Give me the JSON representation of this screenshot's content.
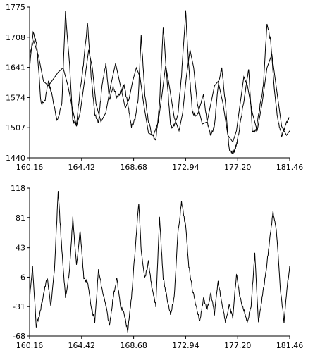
{
  "chart_data": [
    {
      "type": "line",
      "title": "",
      "xlabel": "",
      "ylabel": "",
      "xlim": [
        160.16,
        181.46
      ],
      "ylim": [
        1440,
        1775
      ],
      "x_ticks": [
        160.16,
        164.42,
        168.68,
        172.94,
        177.2,
        181.46
      ],
      "x_tick_labels": [
        "160.16",
        "164.42",
        "168.68",
        "172.94",
        "177.20",
        "181.46"
      ],
      "y_ticks": [
        1440,
        1507,
        1574,
        1641,
        1708,
        1775
      ],
      "y_tick_labels": [
        "1440",
        "1507",
        "1574",
        "1641",
        "1708",
        "1775"
      ],
      "grid": false,
      "series": [
        {
          "name": "",
          "style": "noisy",
          "x": [
            160.16,
            160.45,
            160.75,
            161.1,
            161.4,
            161.7,
            162.0,
            162.4,
            162.8,
            163.1,
            163.4,
            163.7,
            164.0,
            164.3,
            164.6,
            164.9,
            165.2,
            165.5,
            165.8,
            166.1,
            166.4,
            166.7,
            167.0,
            167.3,
            167.6,
            167.9,
            168.2,
            168.5,
            168.8,
            169.05,
            169.3,
            169.6,
            169.9,
            170.2,
            170.5,
            170.8,
            171.1,
            171.4,
            171.7,
            172.0,
            172.3,
            172.6,
            172.94,
            173.2,
            173.5,
            173.8,
            174.1,
            174.4,
            174.7,
            175.0,
            175.3,
            175.6,
            175.9,
            176.2,
            176.5,
            176.8,
            177.0,
            177.2,
            177.5,
            177.8,
            178.1,
            178.4,
            178.7,
            179.0,
            179.3,
            179.6,
            179.9,
            180.2,
            180.5,
            180.8,
            181.1,
            181.4
          ],
          "y": [
            1640,
            1720,
            1690,
            1560,
            1565,
            1610,
            1580,
            1520,
            1560,
            1765,
            1660,
            1520,
            1515,
            1590,
            1655,
            1740,
            1620,
            1535,
            1520,
            1600,
            1650,
            1570,
            1600,
            1575,
            1585,
            1600,
            1560,
            1510,
            1525,
            1570,
            1710,
            1580,
            1520,
            1490,
            1480,
            1560,
            1730,
            1620,
            1510,
            1510,
            1535,
            1620,
            1765,
            1640,
            1540,
            1530,
            1550,
            1580,
            1520,
            1490,
            1510,
            1600,
            1640,
            1560,
            1460,
            1448,
            1460,
            1480,
            1530,
            1580,
            1640,
            1500,
            1500,
            1550,
            1600,
            1740,
            1700,
            1590,
            1520,
            1490,
            1510,
            1530
          ]
        },
        {
          "name": "",
          "style": "smooth",
          "x": [
            160.16,
            160.5,
            160.9,
            161.3,
            161.7,
            162.1,
            162.5,
            162.9,
            163.3,
            163.7,
            164.0,
            164.3,
            164.7,
            165.0,
            165.3,
            165.6,
            166.0,
            166.4,
            166.8,
            167.2,
            167.6,
            168.0,
            168.3,
            168.6,
            168.9,
            169.2,
            169.5,
            169.9,
            170.3,
            170.7,
            171.0,
            171.3,
            171.6,
            172.0,
            172.4,
            172.7,
            173.0,
            173.3,
            173.6,
            173.9,
            174.3,
            174.7,
            175.0,
            175.3,
            175.6,
            176.0,
            176.4,
            176.8,
            177.1,
            177.4,
            177.7,
            178.0,
            178.4,
            178.8,
            179.2,
            179.6,
            180.0,
            180.4,
            180.8,
            181.2,
            181.46
          ],
          "y": [
            1670,
            1700,
            1665,
            1610,
            1600,
            1615,
            1630,
            1640,
            1600,
            1545,
            1510,
            1540,
            1620,
            1680,
            1640,
            1560,
            1520,
            1540,
            1600,
            1650,
            1600,
            1550,
            1570,
            1610,
            1640,
            1620,
            1560,
            1495,
            1490,
            1520,
            1580,
            1645,
            1600,
            1530,
            1500,
            1540,
            1620,
            1680,
            1640,
            1560,
            1515,
            1520,
            1560,
            1600,
            1610,
            1560,
            1490,
            1475,
            1500,
            1560,
            1620,
            1600,
            1540,
            1500,
            1560,
            1640,
            1670,
            1590,
            1510,
            1490,
            1500
          ]
        }
      ]
    },
    {
      "type": "line",
      "title": "",
      "xlabel": "",
      "ylabel": "",
      "xlim": [
        160.16,
        181.46
      ],
      "ylim": [
        -68,
        118
      ],
      "x_ticks": [
        160.16,
        164.42,
        168.68,
        172.94,
        177.2,
        181.46
      ],
      "x_tick_labels": [
        "160.16",
        "164.42",
        "168.68",
        "172.94",
        "177.20",
        "181.46"
      ],
      "y_ticks": [
        -68,
        -31,
        6,
        43,
        81,
        118
      ],
      "y_tick_labels": [
        "-68",
        "-31",
        "6",
        "43",
        "81",
        "118"
      ],
      "grid": false,
      "series": [
        {
          "name": "",
          "style": "noisy",
          "x": [
            160.16,
            160.4,
            160.7,
            161.0,
            161.3,
            161.6,
            161.9,
            162.2,
            162.5,
            162.8,
            163.1,
            163.4,
            163.7,
            164.0,
            164.3,
            164.6,
            164.9,
            165.2,
            165.5,
            165.8,
            166.1,
            166.4,
            166.7,
            167.0,
            167.3,
            167.6,
            167.9,
            168.2,
            168.5,
            168.8,
            169.1,
            169.3,
            169.6,
            169.9,
            170.2,
            170.5,
            170.8,
            171.1,
            171.4,
            171.7,
            172.0,
            172.3,
            172.6,
            172.94,
            173.2,
            173.5,
            173.8,
            174.1,
            174.4,
            174.7,
            175.0,
            175.3,
            175.6,
            175.9,
            176.2,
            176.5,
            176.8,
            177.1,
            177.4,
            177.7,
            178.0,
            178.3,
            178.6,
            178.9,
            179.2,
            179.5,
            179.8,
            180.1,
            180.4,
            180.7,
            181.0,
            181.3,
            181.46
          ],
          "y": [
            -20,
            20,
            -55,
            -40,
            -15,
            5,
            -30,
            15,
            115,
            40,
            -20,
            10,
            80,
            20,
            65,
            5,
            0,
            -30,
            -50,
            15,
            -10,
            -30,
            -55,
            -20,
            5,
            -30,
            -40,
            -62,
            -20,
            40,
            100,
            40,
            5,
            25,
            -10,
            -30,
            82,
            5,
            -20,
            -40,
            -20,
            60,
            100,
            70,
            20,
            -10,
            -30,
            -50,
            -20,
            -35,
            -15,
            -40,
            0,
            -25,
            -50,
            -30,
            -45,
            10,
            -20,
            -35,
            -50,
            -30,
            35,
            -50,
            -20,
            10,
            50,
            88,
            60,
            -10,
            -50,
            0,
            20
          ]
        }
      ]
    }
  ]
}
